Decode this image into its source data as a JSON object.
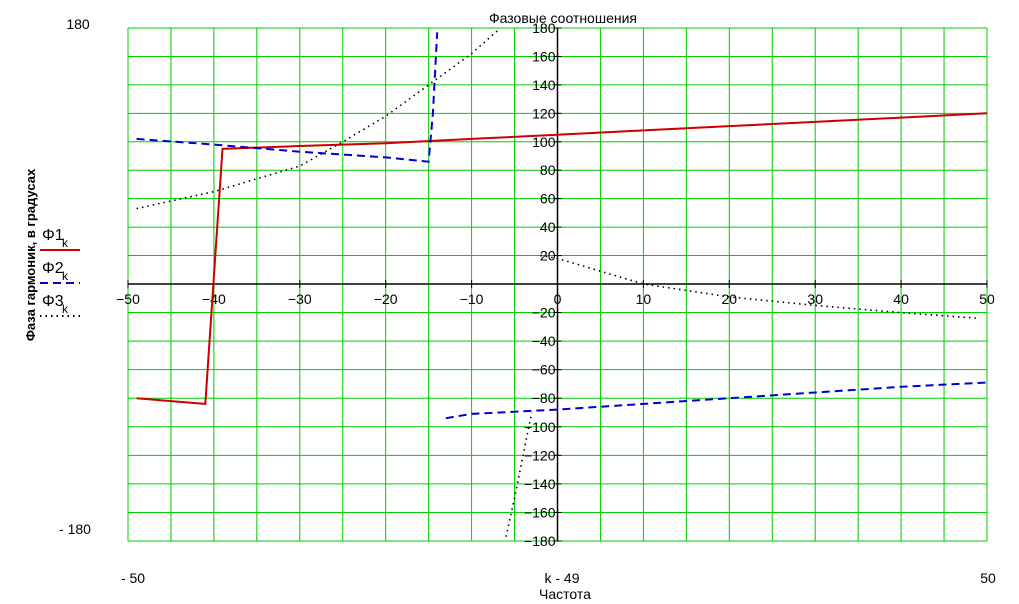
{
  "chart_data": {
    "type": "line",
    "title": "Фазовые соотношения",
    "xlabel": "Частота",
    "x_index_label": "k - 49",
    "ylabel": "Фаза гармоник, в градусах",
    "xlim": [
      -50,
      50
    ],
    "ylim": [
      -180,
      180
    ],
    "xlim_labels": [
      "- 50",
      "50"
    ],
    "ylim_labels": [
      "180",
      "- 180"
    ],
    "grid": true,
    "legend_position": "left",
    "x_ticks": [
      -50,
      -40,
      -30,
      -20,
      -10,
      0,
      10,
      20,
      30,
      40,
      50
    ],
    "y_ticks": [
      180,
      160,
      140,
      120,
      100,
      80,
      60,
      40,
      20,
      0,
      -20,
      -40,
      -60,
      -80,
      -100,
      -120,
      -140,
      -160,
      -180
    ],
    "series": [
      {
        "name": "Φ1",
        "subscript": "k",
        "color": "#cc0000",
        "style": "solid",
        "x": [
          -49,
          -45,
          -41,
          -39,
          -30,
          -20,
          -10,
          0,
          10,
          20,
          30,
          40,
          50
        ],
        "y": [
          -80,
          -82,
          -84,
          95,
          97,
          99,
          102,
          105,
          108,
          111,
          114,
          117,
          120
        ]
      },
      {
        "name": "Φ2",
        "subscript": "k",
        "color": "#0000cc",
        "style": "dashed",
        "x": [
          -49,
          -40,
          -30,
          -20,
          -15,
          -14.5,
          -14,
          -13,
          -10,
          0,
          10,
          20,
          30,
          40,
          50
        ],
        "y": [
          102,
          98,
          93,
          89,
          86,
          120,
          177,
          -94,
          -91,
          -88,
          -84,
          -80,
          -76,
          -72,
          -69
        ],
        "segments": [
          [
            0,
            6
          ],
          [
            7,
            14
          ]
        ]
      },
      {
        "name": "Φ3",
        "subscript": "k",
        "color": "#000000",
        "style": "dotted",
        "x": [
          -49,
          -40,
          -30,
          -25,
          -20,
          -15,
          -10,
          -7,
          -6,
          -5,
          -4,
          -3,
          -2,
          0,
          10,
          20,
          30,
          40,
          49
        ],
        "y": [
          53,
          65,
          83,
          100,
          118,
          140,
          162,
          178,
          -177,
          -150,
          -120,
          -90,
          20,
          18,
          0,
          -9,
          -15,
          -20,
          -24
        ],
        "segments": [
          [
            0,
            7
          ],
          [
            8,
            11
          ],
          [
            12,
            18
          ]
        ]
      }
    ]
  }
}
